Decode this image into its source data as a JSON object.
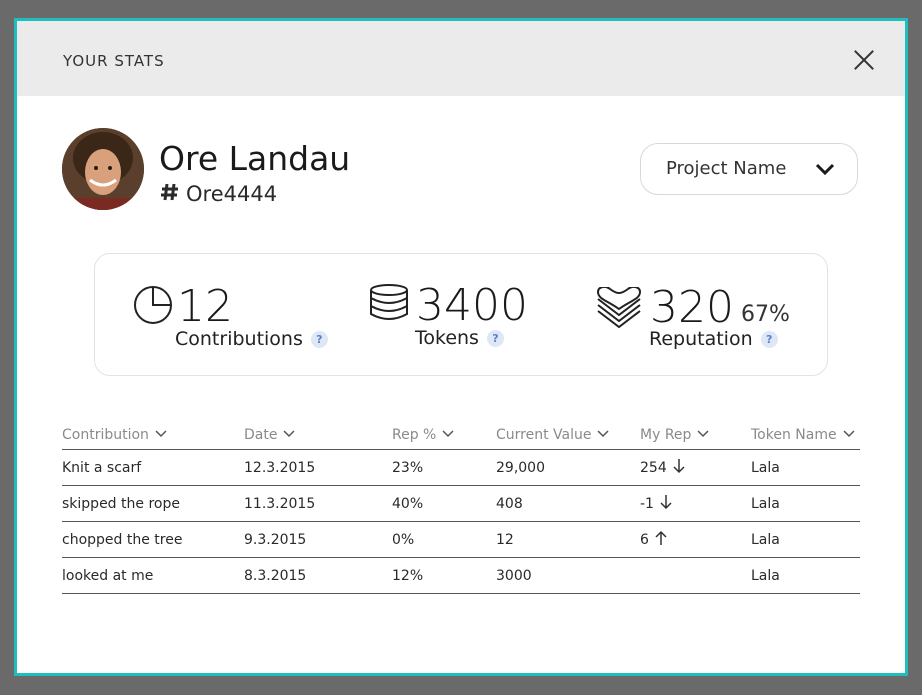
{
  "modal": {
    "title": "YOUR STATS"
  },
  "user": {
    "name": "Ore Landau",
    "handle": "Ore4444"
  },
  "project_select": {
    "selected": "Project Name"
  },
  "stats": {
    "contributions": {
      "value": "12",
      "label": "Contributions",
      "help": "?"
    },
    "tokens": {
      "value": "3400",
      "label": "Tokens",
      "help": "?"
    },
    "reputation": {
      "value": "320",
      "percent": "67%",
      "label": "Reputation",
      "help": "?"
    }
  },
  "table": {
    "columns": [
      "Contribution",
      "Date",
      "Rep %",
      "Current Value",
      "My Rep",
      "Token Name"
    ],
    "rows": [
      {
        "contribution": "Knit a scarf",
        "date": "12.3.2015",
        "rep_pct": "23%",
        "value": "29,000",
        "my_rep": "254",
        "trend": "down",
        "token": "Lala"
      },
      {
        "contribution": "skipped the rope",
        "date": "11.3.2015",
        "rep_pct": "40%",
        "value": "408",
        "my_rep": "-1",
        "trend": "down",
        "token": "Lala"
      },
      {
        "contribution": "chopped the tree",
        "date": "9.3.2015",
        "rep_pct": "0%",
        "value": "12",
        "my_rep": "6",
        "trend": "up",
        "token": "Lala"
      },
      {
        "contribution": "looked at me",
        "date": "8.3.2015",
        "rep_pct": "12%",
        "value": "3000",
        "my_rep": "",
        "trend": "",
        "token": "Lala"
      }
    ]
  },
  "colors": {
    "modal_border": "#1fbdbd",
    "header_bg": "#ebebeb",
    "help_badge_bg": "#dde7f6",
    "help_badge_fg": "#5b83c7"
  },
  "icons": {
    "close": "close-icon",
    "chevron": "chevron-down-icon",
    "handle": "hashtag-icon",
    "contributions": "pie-chart-icon",
    "tokens": "coin-stack-icon",
    "reputation": "layered-heart-icon",
    "trend_down": "arrow-down-icon",
    "trend_up": "arrow-up-icon"
  }
}
